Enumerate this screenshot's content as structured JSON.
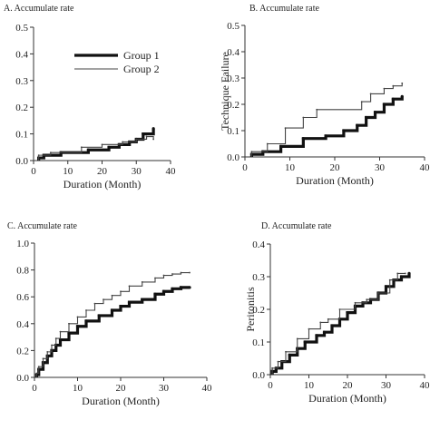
{
  "figure": {
    "legend": {
      "placement": "upper-left inside panel A",
      "entries": [
        {
          "label": "Group 1",
          "style": "thick"
        },
        {
          "label": "Group 2",
          "style": "thin"
        }
      ]
    }
  },
  "chart_data": [
    {
      "id": "A",
      "type": "line",
      "title": "A. Accumulate rate",
      "xlabel": "Duration (Month)",
      "ylabel": "",
      "xlim": [
        0,
        40
      ],
      "ylim": [
        0,
        0.5
      ],
      "xticks": [
        "0",
        "10",
        "20",
        "30",
        "40"
      ],
      "yticks": [
        "0.0",
        "0.1",
        "0.2",
        "0.3",
        "0.4",
        "0.5"
      ],
      "series": [
        {
          "name": "Group 1",
          "step": true,
          "x": [
            1.5,
            3,
            8,
            16,
            22,
            25,
            28,
            30,
            32,
            35
          ],
          "y": [
            0.01,
            0.02,
            0.03,
            0.04,
            0.05,
            0.06,
            0.07,
            0.08,
            0.1,
            0.12
          ]
        },
        {
          "name": "Group 2",
          "step": true,
          "x": [
            1.5,
            5,
            14,
            20,
            26,
            30,
            33,
            35
          ],
          "y": [
            0.02,
            0.03,
            0.05,
            0.06,
            0.07,
            0.08,
            0.09,
            0.08
          ]
        }
      ]
    },
    {
      "id": "B",
      "type": "line",
      "title": "B. Accumulate rate",
      "xlabel": "Duration (Month)",
      "ylabel": "Technique Failure",
      "xlim": [
        0,
        40
      ],
      "ylim": [
        0,
        0.5
      ],
      "xticks": [
        "0",
        "10",
        "20",
        "30",
        "40"
      ],
      "yticks": [
        "0.0",
        "0.1",
        "0.2",
        "0.3",
        "0.4",
        "0.5"
      ],
      "series": [
        {
          "name": "Group 1",
          "step": true,
          "x": [
            1.5,
            4,
            8,
            13,
            18,
            22,
            25,
            27,
            29,
            31,
            33,
            35
          ],
          "y": [
            0.01,
            0.02,
            0.04,
            0.07,
            0.08,
            0.1,
            0.12,
            0.15,
            0.17,
            0.2,
            0.22,
            0.23
          ]
        },
        {
          "name": "Group 2",
          "step": true,
          "x": [
            1.5,
            5,
            9,
            13,
            16,
            26,
            28,
            31,
            33,
            35
          ],
          "y": [
            0.02,
            0.05,
            0.11,
            0.15,
            0.18,
            0.21,
            0.24,
            0.26,
            0.27,
            0.28
          ]
        }
      ]
    },
    {
      "id": "C",
      "type": "line",
      "title": "C. Accumulate rate",
      "xlabel": "Duration (Month)",
      "ylabel": "",
      "xlim": [
        0,
        40
      ],
      "ylim": [
        0,
        1.0
      ],
      "xticks": [
        "0",
        "10",
        "20",
        "30",
        "40"
      ],
      "yticks": [
        "0.0",
        "0.2",
        "0.4",
        "0.6",
        "0.8",
        "1.0"
      ],
      "series": [
        {
          "name": "Group 1",
          "step": true,
          "x": [
            0.5,
            1,
            2,
            3,
            4,
            5,
            6,
            8,
            10,
            12,
            15,
            18,
            20,
            22,
            25,
            28,
            30,
            32,
            34,
            36
          ],
          "y": [
            0.02,
            0.06,
            0.11,
            0.16,
            0.2,
            0.24,
            0.28,
            0.33,
            0.38,
            0.42,
            0.46,
            0.5,
            0.53,
            0.56,
            0.58,
            0.62,
            0.64,
            0.66,
            0.67,
            0.67
          ]
        },
        {
          "name": "Group 2",
          "step": true,
          "x": [
            0.5,
            1,
            2,
            3,
            4,
            5,
            6,
            8,
            10,
            12,
            14,
            16,
            18,
            20,
            22,
            25,
            28,
            30,
            32,
            34,
            36
          ],
          "y": [
            0.03,
            0.08,
            0.14,
            0.19,
            0.24,
            0.29,
            0.34,
            0.4,
            0.45,
            0.5,
            0.55,
            0.58,
            0.61,
            0.64,
            0.68,
            0.71,
            0.74,
            0.76,
            0.77,
            0.78,
            0.78
          ]
        }
      ]
    },
    {
      "id": "D",
      "type": "line",
      "title": "D. Accumulate rate",
      "xlabel": "Duration (Month)",
      "ylabel": "Peritonitis",
      "xlim": [
        0,
        40
      ],
      "ylim": [
        0,
        0.4
      ],
      "xticks": [
        "0",
        "10",
        "20",
        "30",
        "40"
      ],
      "yticks": [
        "0.0",
        "0.1",
        "0.2",
        "0.3",
        "0.4"
      ],
      "series": [
        {
          "name": "Group 1",
          "step": true,
          "x": [
            0.5,
            1.5,
            3,
            5,
            7,
            9,
            12,
            14,
            16,
            18,
            20,
            22,
            24,
            26,
            28,
            30,
            32,
            34,
            36
          ],
          "y": [
            0.01,
            0.02,
            0.04,
            0.06,
            0.08,
            0.1,
            0.12,
            0.13,
            0.15,
            0.17,
            0.19,
            0.21,
            0.22,
            0.23,
            0.25,
            0.27,
            0.29,
            0.3,
            0.31
          ]
        },
        {
          "name": "Group 2",
          "step": true,
          "x": [
            0.5,
            2,
            4,
            7,
            10,
            13,
            15,
            18,
            22,
            25,
            28,
            31,
            33,
            35
          ],
          "y": [
            0.02,
            0.04,
            0.07,
            0.11,
            0.14,
            0.16,
            0.17,
            0.2,
            0.22,
            0.23,
            0.25,
            0.29,
            0.31,
            0.31
          ]
        }
      ]
    }
  ]
}
